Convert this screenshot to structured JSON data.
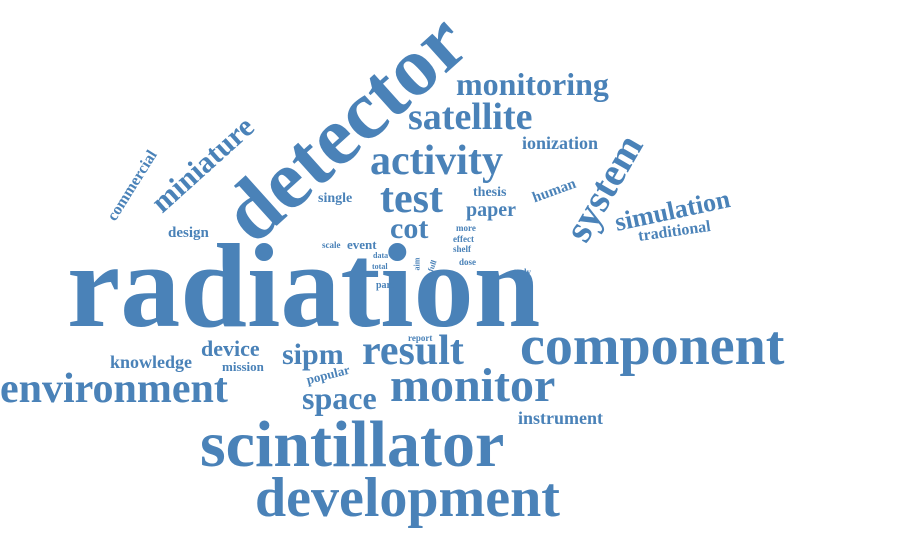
{
  "colors": {
    "word": "#4a82b8",
    "background": "#ffffff"
  },
  "words": {
    "radiation": "radiation",
    "scintillator": "scintillator",
    "development": "development",
    "component": "component",
    "detector": "detector",
    "environment": "environment",
    "monitor": "monitor",
    "result": "result",
    "activity": "activity",
    "system": "system",
    "test": "test",
    "satellite": "satellite",
    "monitoring": "monitoring",
    "space": "space",
    "sipm": "sipm",
    "miniature": "miniature",
    "simulation": "simulation",
    "cot": "cot",
    "device": "device",
    "knowledge": "knowledge",
    "commercial": "commercial",
    "instrument": "instrument",
    "ionization": "ionization",
    "traditional": "traditional",
    "paper": "paper",
    "human": "human",
    "design": "design",
    "single": "single",
    "thesis": "thesis",
    "mission": "mission",
    "popular": "popular",
    "event": "event",
    "part": "part",
    "study": "study",
    "dose": "dose",
    "scale": "scale",
    "data": "data",
    "total": "total",
    "aim": "aim",
    "full": "full",
    "more": "more",
    "effect": "effect",
    "shelf": "shelf",
    "report": "report"
  }
}
